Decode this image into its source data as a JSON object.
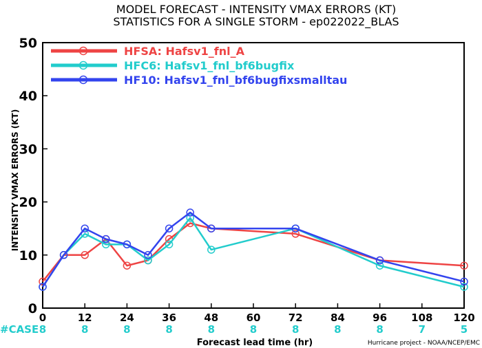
{
  "chart_data": {
    "type": "line",
    "title": "MODEL FORECAST - INTENSITY VMAX ERRORS (KT)",
    "subtitle": "STATISTICS FOR A SINGLE STORM - ep022022_BLAS",
    "xlabel": "Forecast lead time (hr)",
    "ylabel": "INTENSITY VMAX ERRORS (KT)",
    "xlim": [
      0,
      120
    ],
    "ylim": [
      0,
      50
    ],
    "x_ticks": [
      "0",
      "12",
      "24",
      "36",
      "48",
      "60",
      "72",
      "84",
      "96",
      "108",
      "120"
    ],
    "y_ticks": [
      "0",
      "10",
      "20",
      "30",
      "40",
      "50"
    ],
    "legend_position": "top-left",
    "series": [
      {
        "name": "HFSA: Hafsv1_fnl_A",
        "color": "#ee4444",
        "x": [
          0,
          6,
          12,
          18,
          24,
          30,
          36,
          42,
          48,
          72,
          96,
          120
        ],
        "values": [
          5,
          10,
          10,
          13,
          8,
          9,
          13,
          16,
          15,
          14,
          9,
          8
        ]
      },
      {
        "name": "HFC6: Hafsv1_fnl_bf6bugfix",
        "color": "#22cccc",
        "x": [
          0,
          6,
          12,
          18,
          24,
          30,
          36,
          42,
          48,
          72,
          96,
          120
        ],
        "values": [
          4,
          10,
          14,
          12,
          12,
          9,
          12,
          17,
          11,
          15,
          8,
          4
        ]
      },
      {
        "name": "HF10: Hafsv1_fnl_bf6bugfixsmalltau",
        "color": "#3344ee",
        "x": [
          0,
          6,
          12,
          18,
          24,
          30,
          36,
          42,
          48,
          72,
          96,
          120
        ],
        "values": [
          4,
          10,
          15,
          13,
          12,
          10,
          15,
          18,
          15,
          15,
          9,
          5
        ]
      }
    ],
    "cases": {
      "label": "#CASE",
      "color": "#22cccc",
      "x": [
        0,
        12,
        24,
        36,
        48,
        60,
        72,
        84,
        96,
        108,
        120
      ],
      "counts": [
        "8",
        "8",
        "8",
        "8",
        "8",
        "8",
        "8",
        "8",
        "8",
        "7",
        "5"
      ]
    },
    "credit": "Hurricane project - NOAA/NCEP/EMC"
  }
}
